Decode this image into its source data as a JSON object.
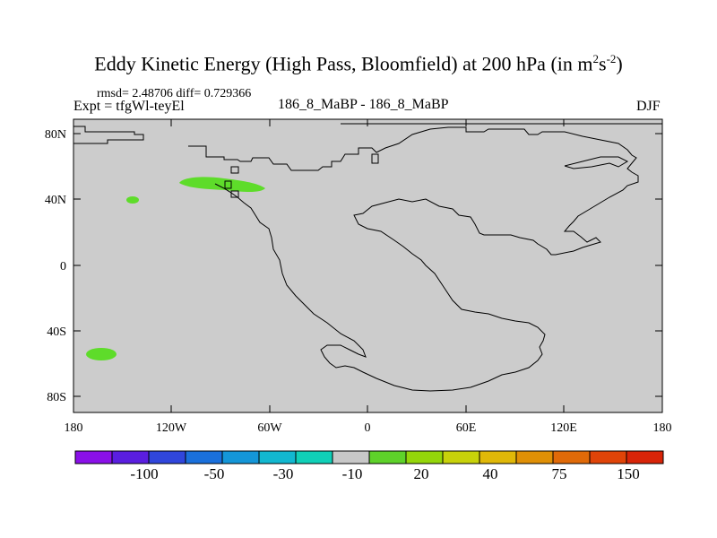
{
  "title": "Eddy Kinetic Energy (High Pass, Bloomfield) at 200 hPa (in m",
  "title_unit_sup1": "2",
  "title_unit_mid": "s",
  "title_unit_sup2": "-2",
  "title_close": ")",
  "stats": "rmsd= 2.48706 diff= 0.729366",
  "experiment": "Expt = tfgWl-teyEl",
  "comparison": "186_8_MaBP - 186_8_MaBP",
  "season": "DJF",
  "lat_labels": [
    "80N",
    "40N",
    "0",
    "40S",
    "80S"
  ],
  "lon_labels": [
    "180",
    "120W",
    "60W",
    "0",
    "60E",
    "120E",
    "180"
  ],
  "colorbar": {
    "colors": [
      "#8a10e8",
      "#5a1ee0",
      "#3046dc",
      "#1a70dc",
      "#1496d8",
      "#12b8d0",
      "#10d0b8",
      "#c8c8c8",
      "#5ed22a",
      "#94d60a",
      "#c8d20a",
      "#e0b808",
      "#e09006",
      "#e06a08",
      "#e04408",
      "#d82408"
    ],
    "labels": [
      "-100",
      "-50",
      "-30",
      "-10",
      "20",
      "40",
      "75",
      "150"
    ]
  },
  "map_colors": {
    "background": "#cccccc",
    "positive": "#5edc2a"
  }
}
